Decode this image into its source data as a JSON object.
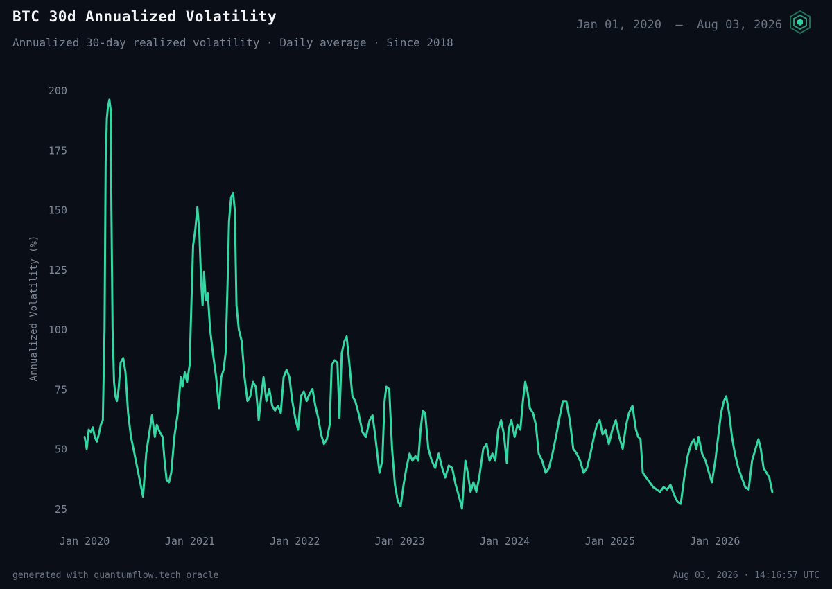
{
  "header": {
    "title": "BTC 30d Annualized Volatility",
    "subtitle": "Annualized 30-day realized volatility · Daily average · Since 2018",
    "date_start": "Jan 01, 2020",
    "date_sep": "—",
    "date_end": "Aug 03, 2026"
  },
  "logo": {
    "icon": "hexagon-logo-icon",
    "color": "#2fd5a0"
  },
  "footer": {
    "left": "generated with quantumflow.tech oracle",
    "right": "Aug 03, 2026 · 14:16:57 UTC"
  },
  "colors": {
    "background": "#0a0f17",
    "line": "#34d6a3",
    "text_muted": "#7b8594",
    "title": "#f2f4f7"
  },
  "chart_data": {
    "type": "line",
    "ylabel": "Annualized Volatility (%)",
    "xlabel": "",
    "ylim": [
      25,
      200
    ],
    "yticks": [
      200,
      175,
      150,
      125,
      100,
      75,
      50,
      25
    ],
    "xticks": [
      {
        "label": "Jan 2020",
        "date": "2020-01-01"
      },
      {
        "label": "Jan 2021",
        "date": "2021-01-01"
      },
      {
        "label": "Jan 2022",
        "date": "2022-01-01"
      },
      {
        "label": "Jan 2023",
        "date": "2023-01-01"
      },
      {
        "label": "Jan 2024",
        "date": "2024-01-01"
      },
      {
        "label": "Jan 2025",
        "date": "2025-01-01"
      },
      {
        "label": "Jan 2026",
        "date": "2026-01-01"
      }
    ],
    "grid": false,
    "legend": "none",
    "series": [
      {
        "values": [
          [
            "2020-01-01",
            55
          ],
          [
            "2020-01-08",
            50
          ],
          [
            "2020-01-15",
            58
          ],
          [
            "2020-01-22",
            57
          ],
          [
            "2020-01-29",
            59
          ],
          [
            "2020-02-05",
            55
          ],
          [
            "2020-02-12",
            53
          ],
          [
            "2020-02-19",
            56
          ],
          [
            "2020-02-26",
            60
          ],
          [
            "2020-03-04",
            62
          ],
          [
            "2020-03-10",
            100
          ],
          [
            "2020-03-14",
            170
          ],
          [
            "2020-03-18",
            188
          ],
          [
            "2020-03-22",
            193
          ],
          [
            "2020-03-27",
            196
          ],
          [
            "2020-03-31",
            192
          ],
          [
            "2020-04-03",
            150
          ],
          [
            "2020-04-07",
            100
          ],
          [
            "2020-04-12",
            78
          ],
          [
            "2020-04-17",
            72
          ],
          [
            "2020-04-22",
            70
          ],
          [
            "2020-04-28",
            75
          ],
          [
            "2020-05-05",
            86
          ],
          [
            "2020-05-14",
            88
          ],
          [
            "2020-05-22",
            82
          ],
          [
            "2020-05-31",
            65
          ],
          [
            "2020-06-10",
            55
          ],
          [
            "2020-06-22",
            48
          ],
          [
            "2020-07-02",
            42
          ],
          [
            "2020-07-12",
            36
          ],
          [
            "2020-07-22",
            30
          ],
          [
            "2020-08-02",
            48
          ],
          [
            "2020-08-12",
            56
          ],
          [
            "2020-08-22",
            64
          ],
          [
            "2020-09-01",
            55
          ],
          [
            "2020-09-08",
            60
          ],
          [
            "2020-09-18",
            57
          ],
          [
            "2020-09-28",
            55
          ],
          [
            "2020-10-05",
            45
          ],
          [
            "2020-10-12",
            37
          ],
          [
            "2020-10-20",
            36
          ],
          [
            "2020-10-28",
            40
          ],
          [
            "2020-11-08",
            55
          ],
          [
            "2020-11-20",
            65
          ],
          [
            "2020-11-30",
            80
          ],
          [
            "2020-12-06",
            76
          ],
          [
            "2020-12-14",
            82
          ],
          [
            "2020-12-22",
            78
          ],
          [
            "2020-12-31",
            85
          ],
          [
            "2021-01-06",
            110
          ],
          [
            "2021-01-12",
            135
          ],
          [
            "2021-01-20",
            142
          ],
          [
            "2021-01-27",
            151
          ],
          [
            "2021-02-03",
            140
          ],
          [
            "2021-02-09",
            120
          ],
          [
            "2021-02-14",
            110
          ],
          [
            "2021-02-19",
            124
          ],
          [
            "2021-02-25",
            112
          ],
          [
            "2021-03-04",
            115
          ],
          [
            "2021-03-12",
            100
          ],
          [
            "2021-03-22",
            90
          ],
          [
            "2021-04-02",
            80
          ],
          [
            "2021-04-12",
            67
          ],
          [
            "2021-04-20",
            80
          ],
          [
            "2021-04-28",
            83
          ],
          [
            "2021-05-05",
            90
          ],
          [
            "2021-05-12",
            120
          ],
          [
            "2021-05-17",
            145
          ],
          [
            "2021-05-24",
            155
          ],
          [
            "2021-05-31",
            157
          ],
          [
            "2021-06-06",
            150
          ],
          [
            "2021-06-12",
            110
          ],
          [
            "2021-06-20",
            100
          ],
          [
            "2021-06-30",
            95
          ],
          [
            "2021-07-10",
            80
          ],
          [
            "2021-07-20",
            70
          ],
          [
            "2021-07-30",
            72
          ],
          [
            "2021-08-08",
            78
          ],
          [
            "2021-08-18",
            76
          ],
          [
            "2021-08-28",
            62
          ],
          [
            "2021-09-06",
            72
          ],
          [
            "2021-09-14",
            80
          ],
          [
            "2021-09-24",
            70
          ],
          [
            "2021-10-04",
            75
          ],
          [
            "2021-10-14",
            68
          ],
          [
            "2021-10-24",
            66
          ],
          [
            "2021-11-03",
            68
          ],
          [
            "2021-11-13",
            65
          ],
          [
            "2021-11-23",
            80
          ],
          [
            "2021-12-03",
            83
          ],
          [
            "2021-12-13",
            80
          ],
          [
            "2021-12-23",
            70
          ],
          [
            "2022-01-02",
            63
          ],
          [
            "2022-01-12",
            58
          ],
          [
            "2022-01-22",
            72
          ],
          [
            "2022-02-01",
            74
          ],
          [
            "2022-02-11",
            70
          ],
          [
            "2022-02-21",
            73
          ],
          [
            "2022-03-03",
            75
          ],
          [
            "2022-03-13",
            68
          ],
          [
            "2022-03-23",
            63
          ],
          [
            "2022-04-02",
            56
          ],
          [
            "2022-04-12",
            52
          ],
          [
            "2022-04-22",
            54
          ],
          [
            "2022-05-02",
            60
          ],
          [
            "2022-05-09",
            85
          ],
          [
            "2022-05-19",
            87
          ],
          [
            "2022-05-29",
            86
          ],
          [
            "2022-06-05",
            63
          ],
          [
            "2022-06-13",
            90
          ],
          [
            "2022-06-22",
            95
          ],
          [
            "2022-06-30",
            97
          ],
          [
            "2022-07-10",
            85
          ],
          [
            "2022-07-20",
            72
          ],
          [
            "2022-07-30",
            70
          ],
          [
            "2022-08-10",
            65
          ],
          [
            "2022-08-24",
            57
          ],
          [
            "2022-09-05",
            55
          ],
          [
            "2022-09-18",
            62
          ],
          [
            "2022-09-28",
            64
          ],
          [
            "2022-10-08",
            55
          ],
          [
            "2022-10-22",
            40
          ],
          [
            "2022-11-01",
            45
          ],
          [
            "2022-11-09",
            70
          ],
          [
            "2022-11-15",
            76
          ],
          [
            "2022-11-25",
            75
          ],
          [
            "2022-12-05",
            50
          ],
          [
            "2022-12-15",
            35
          ],
          [
            "2022-12-25",
            28
          ],
          [
            "2023-01-04",
            26
          ],
          [
            "2023-01-14",
            35
          ],
          [
            "2023-01-24",
            42
          ],
          [
            "2023-02-04",
            48
          ],
          [
            "2023-02-14",
            45
          ],
          [
            "2023-02-24",
            47
          ],
          [
            "2023-03-06",
            45
          ],
          [
            "2023-03-14",
            58
          ],
          [
            "2023-03-22",
            66
          ],
          [
            "2023-03-30",
            65
          ],
          [
            "2023-04-10",
            50
          ],
          [
            "2023-04-22",
            45
          ],
          [
            "2023-05-04",
            42
          ],
          [
            "2023-05-16",
            48
          ],
          [
            "2023-05-28",
            42
          ],
          [
            "2023-06-08",
            38
          ],
          [
            "2023-06-20",
            43
          ],
          [
            "2023-07-02",
            42
          ],
          [
            "2023-07-14",
            35
          ],
          [
            "2023-07-26",
            30
          ],
          [
            "2023-08-05",
            25
          ],
          [
            "2023-08-17",
            45
          ],
          [
            "2023-08-25",
            40
          ],
          [
            "2023-09-04",
            32
          ],
          [
            "2023-09-14",
            36
          ],
          [
            "2023-09-24",
            32
          ],
          [
            "2023-10-04",
            38
          ],
          [
            "2023-10-18",
            50
          ],
          [
            "2023-10-30",
            52
          ],
          [
            "2023-11-09",
            45
          ],
          [
            "2023-11-19",
            48
          ],
          [
            "2023-11-29",
            45
          ],
          [
            "2023-12-09",
            58
          ],
          [
            "2023-12-19",
            62
          ],
          [
            "2023-12-29",
            56
          ],
          [
            "2024-01-08",
            44
          ],
          [
            "2024-01-14",
            58
          ],
          [
            "2024-01-24",
            62
          ],
          [
            "2024-02-04",
            55
          ],
          [
            "2024-02-14",
            60
          ],
          [
            "2024-02-24",
            58
          ],
          [
            "2024-03-04",
            70
          ],
          [
            "2024-03-12",
            78
          ],
          [
            "2024-03-20",
            74
          ],
          [
            "2024-03-28",
            67
          ],
          [
            "2024-04-08",
            65
          ],
          [
            "2024-04-18",
            60
          ],
          [
            "2024-04-28",
            48
          ],
          [
            "2024-05-10",
            45
          ],
          [
            "2024-05-22",
            40
          ],
          [
            "2024-06-03",
            42
          ],
          [
            "2024-06-15",
            48
          ],
          [
            "2024-06-27",
            55
          ],
          [
            "2024-07-09",
            63
          ],
          [
            "2024-07-21",
            70
          ],
          [
            "2024-08-02",
            70
          ],
          [
            "2024-08-14",
            62
          ],
          [
            "2024-08-26",
            50
          ],
          [
            "2024-09-07",
            48
          ],
          [
            "2024-09-19",
            45
          ],
          [
            "2024-10-01",
            40
          ],
          [
            "2024-10-13",
            42
          ],
          [
            "2024-10-25",
            48
          ],
          [
            "2024-11-06",
            55
          ],
          [
            "2024-11-16",
            60
          ],
          [
            "2024-11-26",
            62
          ],
          [
            "2024-12-06",
            56
          ],
          [
            "2024-12-16",
            58
          ],
          [
            "2024-12-28",
            52
          ],
          [
            "2025-01-09",
            58
          ],
          [
            "2025-01-21",
            62
          ],
          [
            "2025-02-02",
            55
          ],
          [
            "2025-02-14",
            50
          ],
          [
            "2025-02-26",
            60
          ],
          [
            "2025-03-08",
            65
          ],
          [
            "2025-03-20",
            68
          ],
          [
            "2025-04-01",
            58
          ],
          [
            "2025-04-09",
            55
          ],
          [
            "2025-04-17",
            54
          ],
          [
            "2025-04-25",
            40
          ],
          [
            "2025-05-07",
            38
          ],
          [
            "2025-05-19",
            36
          ],
          [
            "2025-05-31",
            34
          ],
          [
            "2025-06-12",
            33
          ],
          [
            "2025-06-24",
            32
          ],
          [
            "2025-07-06",
            34
          ],
          [
            "2025-07-18",
            33
          ],
          [
            "2025-07-30",
            35
          ],
          [
            "2025-08-11",
            31
          ],
          [
            "2025-08-23",
            28
          ],
          [
            "2025-09-04",
            27
          ],
          [
            "2025-09-16",
            38
          ],
          [
            "2025-09-28",
            47
          ],
          [
            "2025-10-10",
            52
          ],
          [
            "2025-10-20",
            54
          ],
          [
            "2025-10-28",
            50
          ],
          [
            "2025-11-05",
            55
          ],
          [
            "2025-11-17",
            48
          ],
          [
            "2025-11-29",
            45
          ],
          [
            "2025-12-11",
            40
          ],
          [
            "2025-12-21",
            36
          ],
          [
            "2026-01-02",
            45
          ],
          [
            "2026-01-12",
            55
          ],
          [
            "2026-01-22",
            65
          ],
          [
            "2026-02-01",
            70
          ],
          [
            "2026-02-09",
            72
          ],
          [
            "2026-02-19",
            65
          ],
          [
            "2026-03-01",
            55
          ],
          [
            "2026-03-11",
            48
          ],
          [
            "2026-03-23",
            42
          ],
          [
            "2026-04-04",
            38
          ],
          [
            "2026-04-16",
            34
          ],
          [
            "2026-04-28",
            33
          ],
          [
            "2026-05-10",
            45
          ],
          [
            "2026-05-22",
            50
          ],
          [
            "2026-06-01",
            54
          ],
          [
            "2026-06-09",
            50
          ],
          [
            "2026-06-19",
            42
          ],
          [
            "2026-06-29",
            40
          ],
          [
            "2026-07-09",
            38
          ],
          [
            "2026-07-19",
            32
          ]
        ]
      }
    ]
  }
}
